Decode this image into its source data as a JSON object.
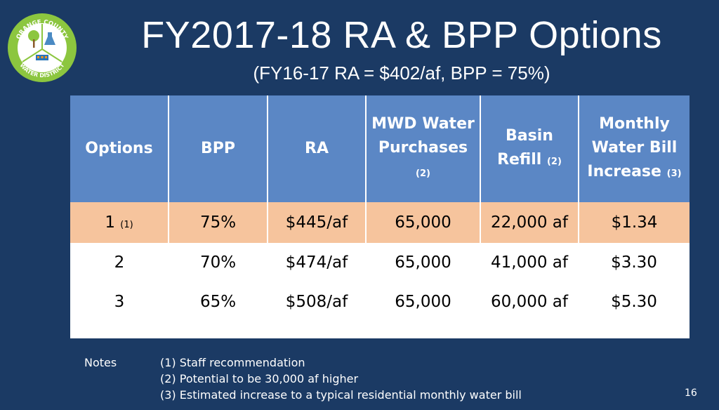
{
  "logo": {
    "ring_top_text": "ORANGE COUNTY",
    "ring_bottom_text": "WATER DISTRICT",
    "colors": {
      "ring": "#8cc63f",
      "inner": "#ffffff",
      "accent_blue": "#2a76b8",
      "accent_orange": "#f7941d"
    }
  },
  "title": "FY2017-18 RA & BPP Options",
  "subtitle": "(FY16-17 RA = $402/af, BPP = 75%)",
  "table": {
    "headers": [
      {
        "text": "Options",
        "sub": ""
      },
      {
        "text": "BPP",
        "sub": ""
      },
      {
        "text": "RA",
        "sub": ""
      },
      {
        "text": "MWD Water Purchases",
        "sub": "(2)"
      },
      {
        "text": "Basin Refill",
        "sub": "(2)"
      },
      {
        "text": "Monthly Water Bill Increase",
        "sub": "(3)"
      }
    ],
    "rows": [
      {
        "option": "1",
        "option_sub": "(1)",
        "bpp": "75%",
        "ra": "$445/af",
        "mwd": "65,000",
        "refill": "22,000 af",
        "bill": "$1.34",
        "highlighted": true
      },
      {
        "option": "2",
        "option_sub": "",
        "bpp": "70%",
        "ra": "$474/af",
        "mwd": "65,000",
        "refill": "41,000 af",
        "bill": "$3.30",
        "highlighted": false
      },
      {
        "option": "3",
        "option_sub": "",
        "bpp": "65%",
        "ra": "$508/af",
        "mwd": "65,000",
        "refill": "60,000 af",
        "bill": "$5.30",
        "highlighted": false
      }
    ],
    "colors": {
      "header_bg": "#5b87c5",
      "highlight_row": "#f6c49d"
    }
  },
  "notes": {
    "label": "Notes",
    "items": [
      "(1) Staff recommendation",
      "(2) Potential to be 30,000 af higher",
      "(3) Estimated increase to a typical residential monthly water bill"
    ]
  },
  "page_number": "16"
}
